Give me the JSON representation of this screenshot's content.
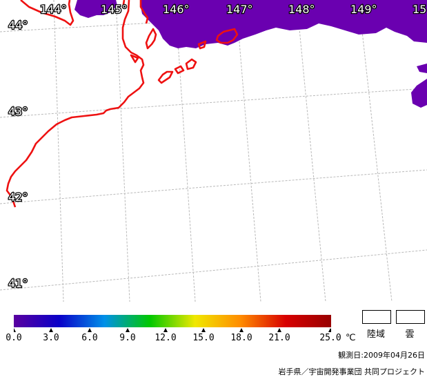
{
  "map": {
    "longitude_labels": [
      "144°",
      "145°",
      "146°",
      "147°",
      "148°",
      "149°",
      "15"
    ],
    "latitude_labels": [
      "44°",
      "43°",
      "42°",
      "41°"
    ],
    "colors": {
      "coastline": "#ee1111",
      "cloud": "#6a00b0",
      "graticule": "#b8b8b8",
      "background": "#ffffff"
    }
  },
  "legend": {
    "scale_colors": [
      "#5a00a0",
      "#0a00c8",
      "#0090e8",
      "#00c800",
      "#f0e800",
      "#ff8c00",
      "#d80000",
      "#980000"
    ],
    "tick_labels": [
      "0.0",
      "3.0",
      "6.0",
      "9.0",
      "12.0",
      "15.0",
      "18.0",
      "21.0",
      "25.0"
    ],
    "unit": "℃",
    "land_label": "陸域",
    "cloud_label": "雲"
  },
  "footer": {
    "observation_date": "観測日:2009年04月26日",
    "credit": "岩手県／宇宙開発事業団 共同プロジェクト"
  }
}
